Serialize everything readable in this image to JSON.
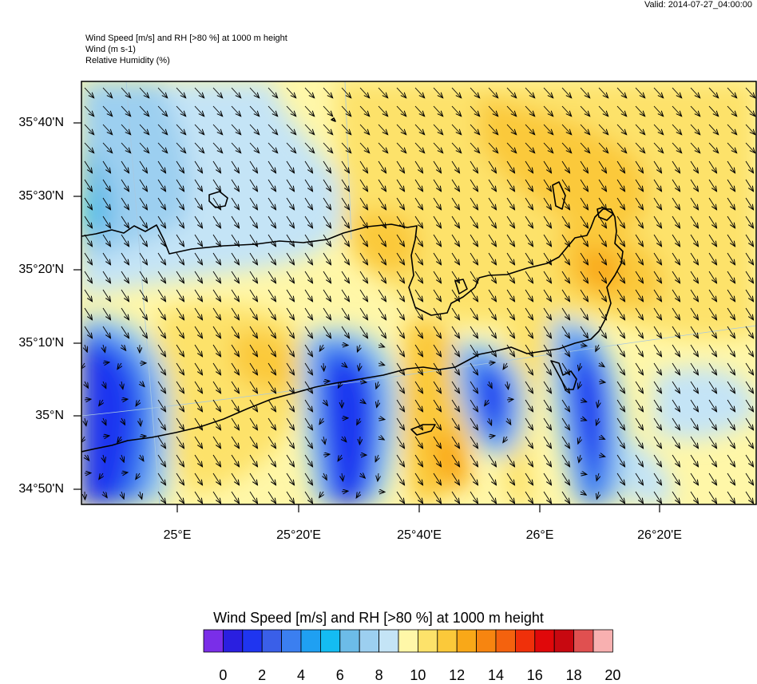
{
  "valid": "Valid: 2014-07-27_04:00:00",
  "header": {
    "line1": "Wind Speed [m/s] and RH [>80 %] at 1000 m height",
    "line2": "Wind   (m s-1)",
    "line3": "Relative Humidity   (%)"
  },
  "lat_labels": [
    "35°40'N",
    "35°30'N",
    "35°20'N",
    "35°10'N",
    "35°N",
    "34°50'N"
  ],
  "lon_labels": [
    "25°E",
    "25°20'E",
    "25°40'E",
    "26°E",
    "26°20'E"
  ],
  "colorbar": {
    "title": "Wind Speed [m/s] and RH [>80 %] at 1000 m height",
    "labels": [
      "0",
      "2",
      "4",
      "6",
      "8",
      "10",
      "12",
      "14",
      "16",
      "18",
      "20"
    ],
    "colors": [
      "#7a2ee8",
      "#2a1fe0",
      "#1f35f0",
      "#3a5fe8",
      "#3b7ff0",
      "#1fa0f2",
      "#14bcf2",
      "#6cbce8",
      "#9ccff0",
      "#c4e4f6",
      "#fff7a8",
      "#fde26a",
      "#fbc93a",
      "#f9a818",
      "#f78510",
      "#f4620e",
      "#f0300a",
      "#e0080a",
      "#c80810",
      "#e05050",
      "#f8b0b0"
    ]
  },
  "regions": {
    "weak_wind_blue": "#1f35f0",
    "light_blue": "#9ccff0",
    "pale_blue": "#c4e4f6",
    "pale_yellow": "#fff7a8",
    "yellow": "#fde26a",
    "orange": "#fbc93a",
    "dark_orange": "#f9a818"
  }
}
